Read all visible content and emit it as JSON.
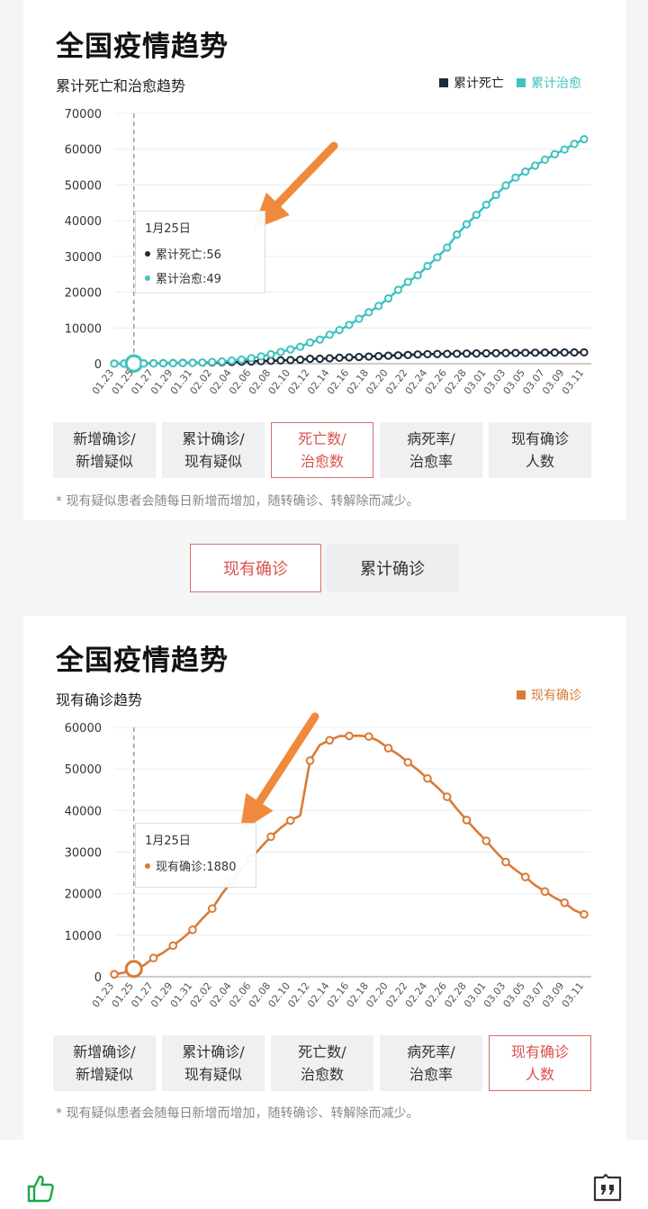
{
  "section1": {
    "title": "全国疫情趋势",
    "subtitle": "累计死亡和治愈趋势",
    "legend": [
      {
        "label": "累计死亡",
        "color": "#1d2b3a"
      },
      {
        "label": "累计治愈",
        "color": "#3fc3c0"
      }
    ],
    "tooltip": {
      "date": "1月25日",
      "rows": [
        {
          "label": "累计死亡:56",
          "color": "#1d2b3a"
        },
        {
          "label": "累计治愈:49",
          "color": "#3fc3c0"
        }
      ]
    },
    "buttons": [
      {
        "label": "新增确诊/\n新增疑似",
        "active": false
      },
      {
        "label": "累计确诊/\n现有疑似",
        "active": false
      },
      {
        "label": "死亡数/\n治愈数",
        "active": true
      },
      {
        "label": "病死率/\n治愈率",
        "active": false
      },
      {
        "label": "现有确诊\n人数",
        "active": false
      }
    ],
    "note": "* 现有疑似患者会随每日新增而增加，随转确诊、转解除而减少。"
  },
  "tabs": [
    {
      "label": "现有确诊",
      "active": true
    },
    {
      "label": "累计确诊",
      "active": false
    }
  ],
  "section2": {
    "title": "全国疫情趋势",
    "subtitle": "现有确诊趋势",
    "legend": [
      {
        "label": "现有确诊",
        "color": "#d97b35"
      }
    ],
    "tooltip": {
      "date": "1月25日",
      "rows": [
        {
          "label": "现有确诊:1880",
          "color": "#d97b35"
        }
      ]
    },
    "buttons": [
      {
        "label": "新增确诊/\n新增疑似",
        "active": false
      },
      {
        "label": "累计确诊/\n现有疑似",
        "active": false
      },
      {
        "label": "死亡数/\n治愈数",
        "active": false
      },
      {
        "label": "病死率/\n治愈率",
        "active": false
      },
      {
        "label": "现有确诊\n人数",
        "active": true
      }
    ],
    "note": "* 现有疑似患者会随每日新增而增加，随转确诊、转解除而减少。"
  },
  "chart_data": [
    {
      "type": "line",
      "title": "累计死亡和治愈趋势",
      "x": [
        "01.23",
        "01.24",
        "01.25",
        "01.26",
        "01.27",
        "01.28",
        "01.29",
        "01.30",
        "01.31",
        "02.01",
        "02.02",
        "02.03",
        "02.04",
        "02.05",
        "02.06",
        "02.07",
        "02.08",
        "02.09",
        "02.10",
        "02.11",
        "02.12",
        "02.13",
        "02.14",
        "02.15",
        "02.16",
        "02.17",
        "02.18",
        "02.19",
        "02.20",
        "02.21",
        "02.22",
        "02.23",
        "02.24",
        "02.25",
        "02.26",
        "02.27",
        "02.28",
        "02.29",
        "03.01",
        "03.02",
        "03.03",
        "03.04",
        "03.05",
        "03.06",
        "03.07",
        "03.08",
        "03.09",
        "03.10",
        "03.11"
      ],
      "xticks": [
        "01.23",
        "01.25",
        "01.27",
        "01.29",
        "01.31",
        "02.02",
        "02.04",
        "02.06",
        "02.08",
        "02.10",
        "02.12",
        "02.14",
        "02.16",
        "02.18",
        "02.20",
        "02.22",
        "02.24",
        "02.26",
        "02.28",
        "03.01",
        "03.03",
        "03.05",
        "03.07",
        "03.09",
        "03.11"
      ],
      "ylim": [
        0,
        70000
      ],
      "yticks": [
        0,
        10000,
        20000,
        30000,
        40000,
        50000,
        60000,
        70000
      ],
      "highlight_x": "01.25",
      "series": [
        {
          "name": "累计死亡",
          "color": "#1d2b3a",
          "values": [
            17,
            41,
            56,
            80,
            106,
            132,
            170,
            213,
            259,
            304,
            361,
            425,
            490,
            563,
            636,
            722,
            811,
            908,
            1016,
            1113,
            1367,
            1380,
            1523,
            1665,
            1770,
            1868,
            2004,
            2118,
            2236,
            2345,
            2442,
            2592,
            2663,
            2715,
            2744,
            2788,
            2835,
            2870,
            2912,
            2943,
            2981,
            3012,
            3042,
            3070,
            3097,
            3119,
            3136,
            3158,
            3169
          ]
        },
        {
          "name": "累计治愈",
          "color": "#3fc3c0",
          "values": [
            34,
            38,
            49,
            51,
            60,
            103,
            124,
            171,
            243,
            328,
            475,
            632,
            892,
            1153,
            1540,
            2050,
            2649,
            3281,
            3996,
            4740,
            5911,
            6723,
            8096,
            9419,
            10844,
            12552,
            14376,
            16155,
            18264,
            20659,
            22888,
            24734,
            27323,
            29745,
            32495,
            36117,
            39002,
            41625,
            44462,
            47204,
            49856,
            52045,
            53726,
            55404,
            57065,
            58600,
            59897,
            61475,
            62793
          ]
        }
      ]
    },
    {
      "type": "line",
      "title": "现有确诊趋势",
      "x": [
        "01.23",
        "01.24",
        "01.25",
        "01.26",
        "01.27",
        "01.28",
        "01.29",
        "01.30",
        "01.31",
        "02.01",
        "02.02",
        "02.03",
        "02.04",
        "02.05",
        "02.06",
        "02.07",
        "02.08",
        "02.09",
        "02.10",
        "02.11",
        "02.12",
        "02.13",
        "02.14",
        "02.15",
        "02.16",
        "02.17",
        "02.18",
        "02.19",
        "02.20",
        "02.21",
        "02.22",
        "02.23",
        "02.24",
        "02.25",
        "02.26",
        "02.27",
        "02.28",
        "02.29",
        "03.01",
        "03.02",
        "03.03",
        "03.04",
        "03.05",
        "03.06",
        "03.07",
        "03.08",
        "03.09",
        "03.10",
        "03.11"
      ],
      "xticks": [
        "01.23",
        "01.25",
        "01.27",
        "01.29",
        "01.31",
        "02.02",
        "02.04",
        "02.06",
        "02.08",
        "02.10",
        "02.12",
        "02.14",
        "02.16",
        "02.18",
        "02.20",
        "02.22",
        "02.24",
        "02.26",
        "02.28",
        "03.01",
        "03.03",
        "03.05",
        "03.07",
        "03.09",
        "03.11"
      ],
      "ylim": [
        0,
        60000
      ],
      "yticks": [
        0,
        10000,
        20000,
        30000,
        40000,
        50000,
        60000
      ],
      "highlight_x": "01.25",
      "series": [
        {
          "name": "现有确诊",
          "color": "#d97b35",
          "values": [
            584,
            1000,
            1880,
            2700,
            4500,
            5800,
            7500,
            9300,
            11300,
            14000,
            16400,
            19900,
            23000,
            26000,
            28500,
            31200,
            33700,
            35800,
            37600,
            38800,
            52000,
            55800,
            56900,
            57900,
            57934,
            58000,
            57800,
            56700,
            55000,
            53500,
            51600,
            49800,
            47700,
            45600,
            43300,
            40400,
            37700,
            35100,
            32700,
            30000,
            27600,
            25700,
            24000,
            22000,
            20500,
            19000,
            17800,
            16000,
            15000
          ]
        }
      ]
    }
  ]
}
